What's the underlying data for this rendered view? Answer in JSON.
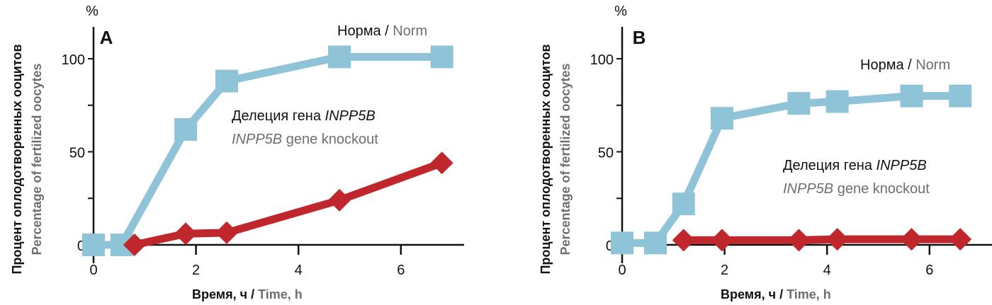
{
  "colors": {
    "norm": "#8fc4d8",
    "knockout": "#c0272d",
    "axis": "#111111",
    "gray": "#6e6e6e"
  },
  "chart_data": [
    {
      "type": "line",
      "panel": "A",
      "unit": "%",
      "ylabel_ru": "Процент оплодотворенных ооцитов",
      "ylabel_en": "Percentage of fertilized oocytes",
      "xlabel_ru": "Время, ч /",
      "xlabel_en": "Time, h",
      "xlim": [
        0,
        7.2
      ],
      "ylim": [
        0,
        115
      ],
      "xticks": [
        "0",
        "2",
        "4",
        "6"
      ],
      "yticks": [
        "0",
        "50",
        "100"
      ],
      "series": [
        {
          "name": "norm",
          "label_ru": "Норма /",
          "label_en": "Norm",
          "marker": "square",
          "x": [
            0,
            0.55,
            1.8,
            2.6,
            4.8,
            6.8
          ],
          "y": [
            0,
            0,
            62,
            88,
            101,
            101
          ]
        },
        {
          "name": "knockout",
          "label_ru": "Делеция гена ",
          "label_ru_gene": "INPP5B",
          "label_en_gene": "INPP5B",
          "label_en": " gene knockout",
          "marker": "diamond",
          "x": [
            0.8,
            1.8,
            2.6,
            4.8,
            6.8
          ],
          "y": [
            0,
            6,
            6.5,
            24,
            44
          ]
        }
      ]
    },
    {
      "type": "line",
      "panel": "B",
      "unit": "%",
      "ylabel_ru": "Процент оплодотворенных ооцитов",
      "ylabel_en": "Percentage of fertilized oocytes",
      "xlabel_ru": "Время, ч /",
      "xlabel_en": "Time, h",
      "xlim": [
        0,
        7.2
      ],
      "ylim": [
        0,
        115
      ],
      "xticks": [
        "0",
        "2",
        "4",
        "6"
      ],
      "yticks": [
        "0",
        "50",
        "100"
      ],
      "series": [
        {
          "name": "norm",
          "label_ru": "Норма /",
          "label_en": "Norm",
          "marker": "square",
          "x": [
            0,
            0.65,
            1.2,
            1.95,
            3.45,
            4.2,
            5.65,
            6.6
          ],
          "y": [
            1,
            1,
            22,
            68,
            76,
            77,
            80,
            80
          ]
        },
        {
          "name": "knockout",
          "label_ru": "Делеция гена ",
          "label_ru_gene": "INPP5B",
          "label_en_gene": "INPP5B",
          "label_en": " gene knockout",
          "marker": "diamond",
          "x": [
            1.2,
            1.95,
            3.45,
            4.2,
            5.65,
            6.6
          ],
          "y": [
            2.5,
            2.5,
            2.5,
            3,
            3,
            3
          ]
        }
      ]
    }
  ]
}
